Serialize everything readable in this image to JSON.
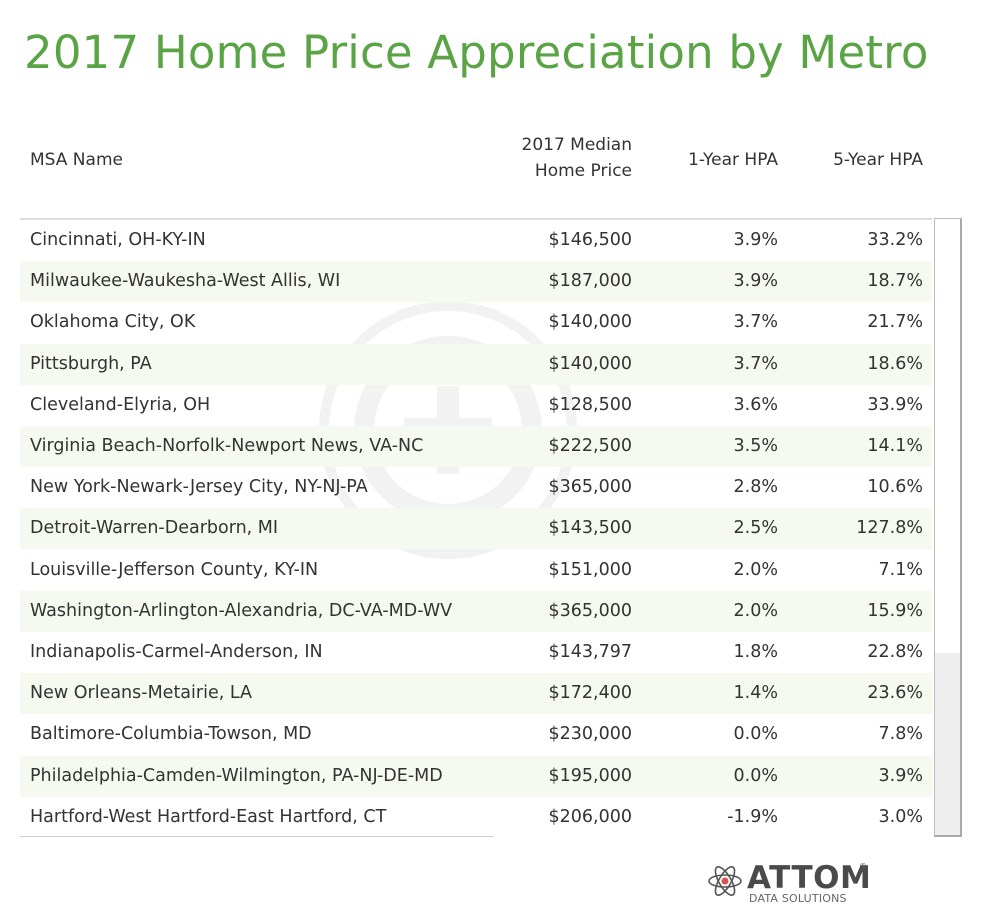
{
  "title": "2017 Home Price Appreciation by Metro",
  "chart_data": {
    "type": "table",
    "columns": {
      "msa": "MSA Name",
      "price_line1": "2017 Median",
      "price_line2": "Home Price",
      "hpa1": "1-Year HPA",
      "hpa5": "5-Year HPA"
    },
    "rows": [
      {
        "msa": "Cincinnati, OH-KY-IN",
        "price": "$146,500",
        "hpa1": "3.9%",
        "hpa5": "33.2%"
      },
      {
        "msa": "Milwaukee-Waukesha-West Allis, WI",
        "price": "$187,000",
        "hpa1": "3.9%",
        "hpa5": "18.7%"
      },
      {
        "msa": "Oklahoma City, OK",
        "price": "$140,000",
        "hpa1": "3.7%",
        "hpa5": "21.7%"
      },
      {
        "msa": "Pittsburgh, PA",
        "price": "$140,000",
        "hpa1": "3.7%",
        "hpa5": "18.6%"
      },
      {
        "msa": "Cleveland-Elyria, OH",
        "price": "$128,500",
        "hpa1": "3.6%",
        "hpa5": "33.9%"
      },
      {
        "msa": "Virginia Beach-Norfolk-Newport News, VA-NC",
        "price": "$222,500",
        "hpa1": "3.5%",
        "hpa5": "14.1%"
      },
      {
        "msa": "New York-Newark-Jersey City, NY-NJ-PA",
        "price": "$365,000",
        "hpa1": "2.8%",
        "hpa5": "10.6%"
      },
      {
        "msa": "Detroit-Warren-Dearborn, MI",
        "price": "$143,500",
        "hpa1": "2.5%",
        "hpa5": "127.8%"
      },
      {
        "msa": "Louisville-Jefferson County, KY-IN",
        "price": "$151,000",
        "hpa1": "2.0%",
        "hpa5": "7.1%"
      },
      {
        "msa": "Washington-Arlington-Alexandria, DC-VA-MD-WV",
        "price": "$365,000",
        "hpa1": "2.0%",
        "hpa5": "15.9%"
      },
      {
        "msa": "Indianapolis-Carmel-Anderson, IN",
        "price": "$143,797",
        "hpa1": "1.8%",
        "hpa5": "22.8%"
      },
      {
        "msa": "New Orleans-Metairie, LA",
        "price": "$172,400",
        "hpa1": "1.4%",
        "hpa5": "23.6%"
      },
      {
        "msa": "Baltimore-Columbia-Towson, MD",
        "price": "$230,000",
        "hpa1": "0.0%",
        "hpa5": "7.8%"
      },
      {
        "msa": "Philadelphia-Camden-Wilmington, PA-NJ-DE-MD",
        "price": "$195,000",
        "hpa1": "0.0%",
        "hpa5": "3.9%"
      },
      {
        "msa": "Hartford-West Hartford-East Hartford, CT",
        "price": "$206,000",
        "hpa1": "-1.9%",
        "hpa5": "3.0%"
      }
    ]
  },
  "logo": {
    "name": "ATTOM",
    "registered": "®",
    "tagline": "DATA SOLUTIONS"
  },
  "colors": {
    "title": "#5aa446",
    "row_alt": "#f5f9ef",
    "text": "#333333"
  }
}
